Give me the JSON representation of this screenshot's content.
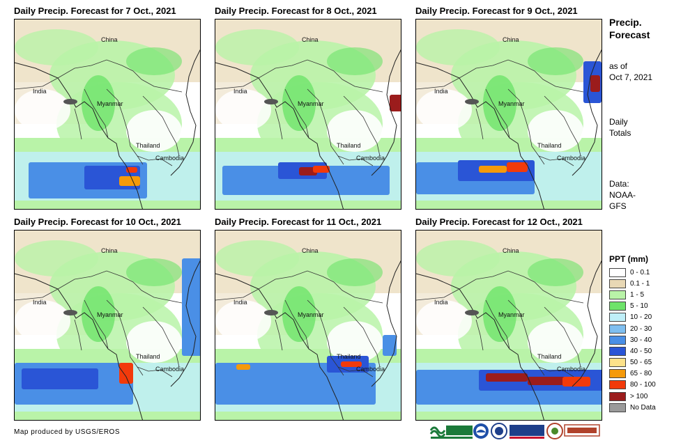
{
  "panels": [
    {
      "title": "Daily Precip. Forecast for 7 Oct., 2021"
    },
    {
      "title": "Daily Precip. Forecast for 8 Oct., 2021"
    },
    {
      "title": "Daily Precip. Forecast for 9 Oct., 2021"
    },
    {
      "title": "Daily Precip. Forecast for 10 Oct., 2021"
    },
    {
      "title": "Daily Precip. Forecast for 11 Oct., 2021"
    },
    {
      "title": "Daily Precip. Forecast for 12 Oct., 2021"
    }
  ],
  "places": {
    "china": "China",
    "india": "India",
    "myanmar": "Myanmar",
    "thailand": "Thailand",
    "cambodia": "Cambodia"
  },
  "sidebar": {
    "title_line1": "Precip.",
    "title_line2": "Forecast",
    "asof_line1": "as of",
    "asof_line2": "Oct 7, 2021",
    "totals_line1": "Daily",
    "totals_line2": "Totals",
    "data_line1": "Data:",
    "data_line2": "NOAA-",
    "data_line3": "GFS"
  },
  "legend": {
    "title": "PPT (mm)",
    "items": [
      {
        "label": "0 - 0.1",
        "color": "#ffffff"
      },
      {
        "label": "0.1 - 1",
        "color": "#e8d8b5"
      },
      {
        "label": "1 - 5",
        "color": "#b9f3a8"
      },
      {
        "label": "5 - 10",
        "color": "#6ee36a"
      },
      {
        "label": "10 - 20",
        "color": "#bfeff8"
      },
      {
        "label": "20 - 30",
        "color": "#7fbff0"
      },
      {
        "label": "30 - 40",
        "color": "#4a8fe6"
      },
      {
        "label": "40 - 50",
        "color": "#2a55d6"
      },
      {
        "label": "50 - 65",
        "color": "#fde28a"
      },
      {
        "label": "65 - 80",
        "color": "#f59a0a"
      },
      {
        "label": "80 - 100",
        "color": "#f23a0b"
      },
      {
        "label": "> 100",
        "color": "#9b1c1c"
      },
      {
        "label": "No Data",
        "color": "#9a9a9a"
      }
    ]
  },
  "footer": {
    "credit": "Map produced by USGS/EROS"
  }
}
